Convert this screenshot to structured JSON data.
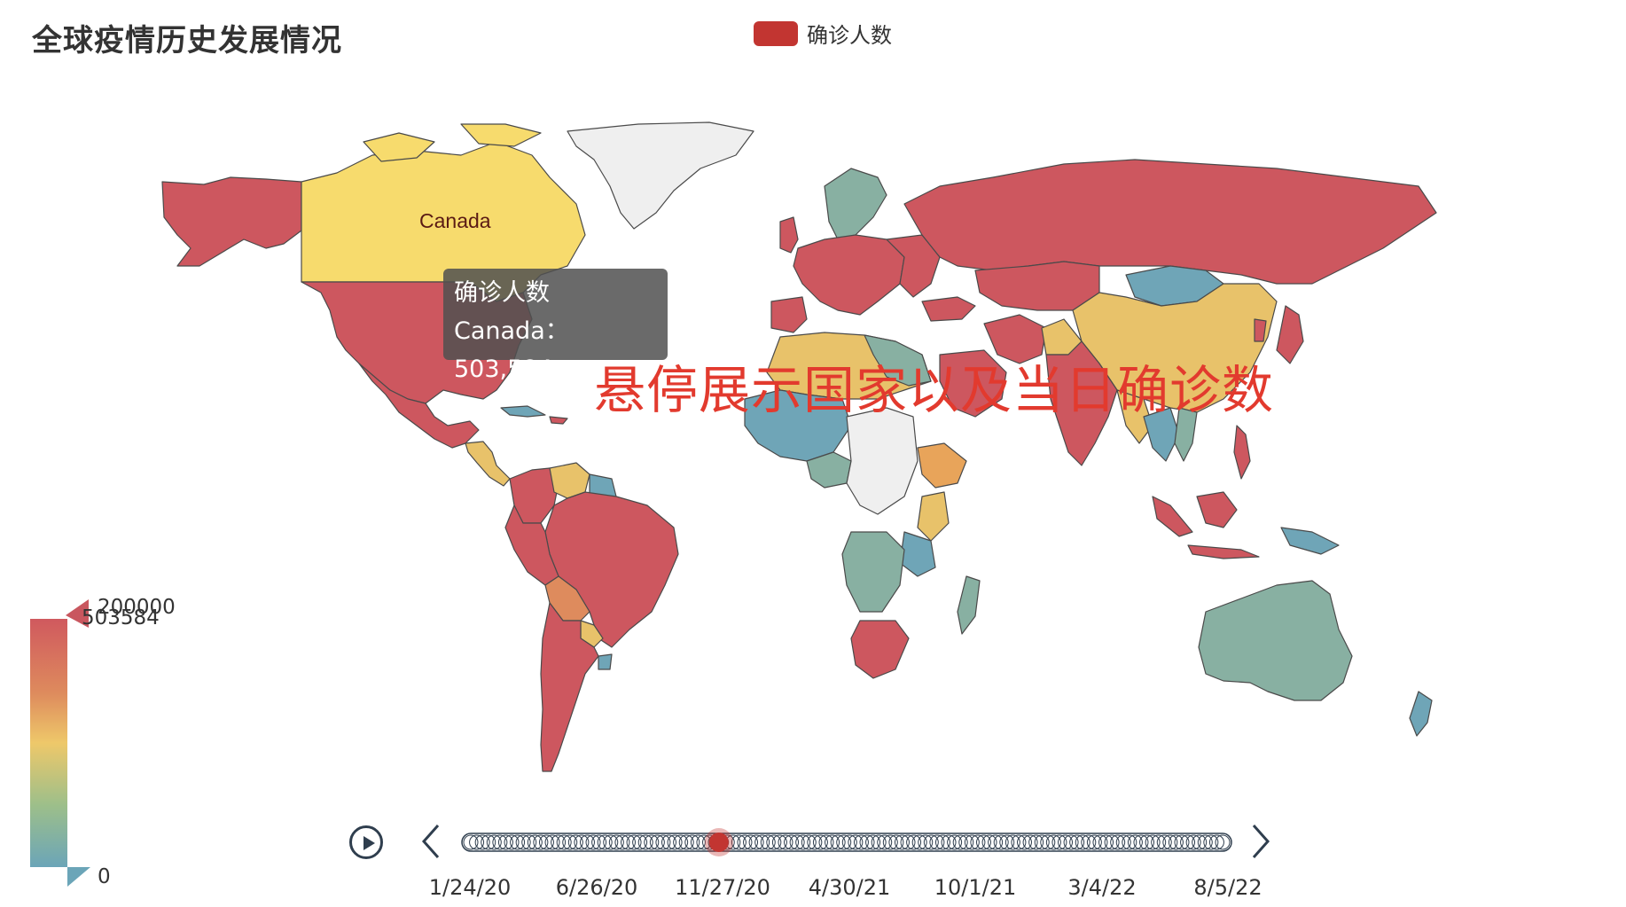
{
  "title": "全球疫情历史发展情况",
  "legend": {
    "label": "确诊人数",
    "color": "#c23531"
  },
  "tooltip": {
    "series": "确诊人数",
    "line": "Canada：503,584"
  },
  "map": {
    "hovered_label": "Canada"
  },
  "annotation": "悬停展示国家以及当日确诊数",
  "visual_map": {
    "max_label": "200000",
    "current_label": "503584",
    "min_label": "0",
    "colors": [
      "#d0595e",
      "#de8b5d",
      "#eec86a",
      "#9dbf8a",
      "#6ba5b8"
    ]
  },
  "timeline": {
    "labels": [
      "1/24/20",
      "6/26/20",
      "11/27/20",
      "4/30/21",
      "10/1/21",
      "3/4/22",
      "8/5/22"
    ],
    "current_index_fraction": 0.33,
    "active_color": "#c23531"
  }
}
